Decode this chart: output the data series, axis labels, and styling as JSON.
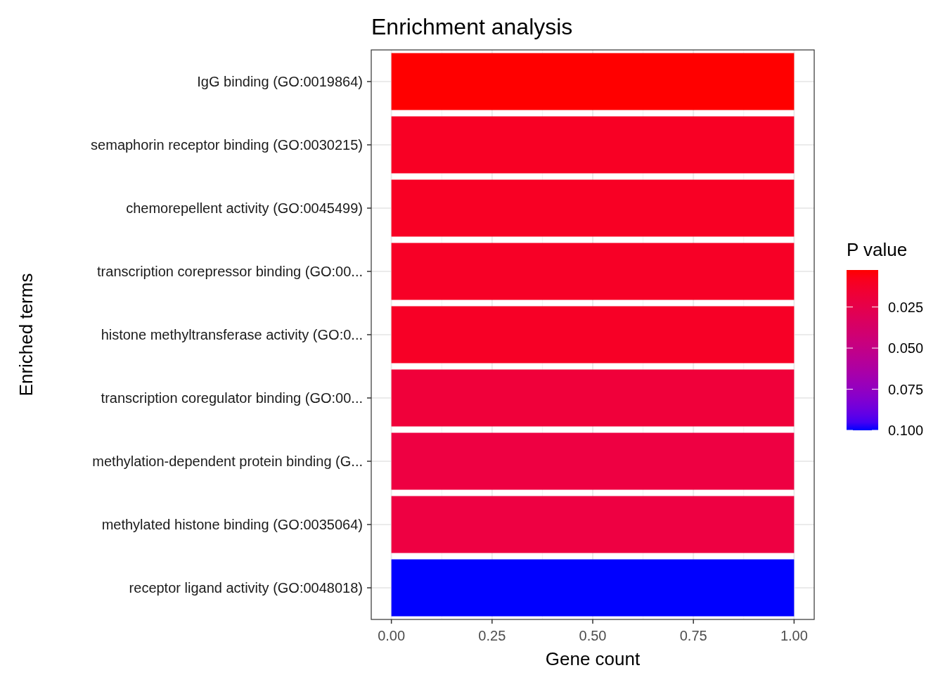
{
  "chart_data": {
    "type": "bar",
    "orientation": "horizontal",
    "title": "Enrichment analysis",
    "xlabel": "Gene count",
    "ylabel": "Enriched terms",
    "categories": [
      "IgG binding (GO:0019864)",
      "semaphorin receptor binding (GO:0030215)",
      "chemorepellent activity (GO:0045499)",
      "transcription corepressor binding (GO:00...",
      "histone methyltransferase activity (GO:0...",
      "transcription coregulator binding (GO:00...",
      "methylation-dependent protein binding (G...",
      "methylated histone binding (GO:0035064)",
      "receptor ligand activity (GO:0048018)"
    ],
    "values": [
      1,
      1,
      1,
      1,
      1,
      1,
      1,
      1,
      1
    ],
    "colors": [
      "#ff0000",
      "#f80024",
      "#f80024",
      "#f70026",
      "#f70026",
      "#f0003a",
      "#ee0042",
      "#ee0042",
      "#0000ff"
    ],
    "xlim": [
      -0.05,
      1.05
    ],
    "xticks": [
      {
        "value": 0,
        "label": "0.00"
      },
      {
        "value": 0.25,
        "label": "0.25"
      },
      {
        "value": 0.5,
        "label": "0.50"
      },
      {
        "value": 0.75,
        "label": "0.75"
      },
      {
        "value": 1,
        "label": "1.00"
      }
    ],
    "grid": true,
    "clabel": "P value",
    "clim": [
      0.0025,
      0.1
    ],
    "cticks": [
      {
        "value": 0.025,
        "label": "0.025"
      },
      {
        "value": 0.05,
        "label": "0.050"
      },
      {
        "value": 0.075,
        "label": "0.075"
      },
      {
        "value": 0.1,
        "label": "0.100"
      }
    ]
  }
}
